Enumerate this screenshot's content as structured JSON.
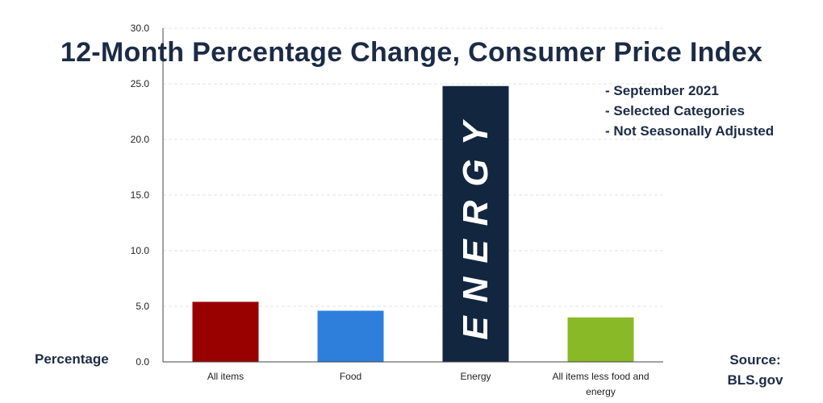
{
  "chart_data": {
    "type": "bar",
    "title": "12-Month Percentage Change, Consumer Price Index",
    "ylabel": "Percentage",
    "xlabel": "",
    "ylim": [
      0,
      30
    ],
    "yticks": [
      "0.0",
      "5.0",
      "10.0",
      "15.0",
      "20.0",
      "25.0",
      "30.0"
    ],
    "grid": true,
    "categories": [
      "All items",
      "Food",
      "Energy",
      "All items less food and energy"
    ],
    "values": [
      5.4,
      4.6,
      24.8,
      4.0
    ],
    "bar_colors": [
      "#990000",
      "#2e7fdc",
      "#12263f",
      "#8ab927"
    ],
    "bar_annotation": "ENERGY",
    "notes": [
      "- September 2021",
      "- Selected Categories",
      "- Not Seasonally Adjusted"
    ],
    "source": [
      "Source:",
      "BLS.gov"
    ]
  }
}
